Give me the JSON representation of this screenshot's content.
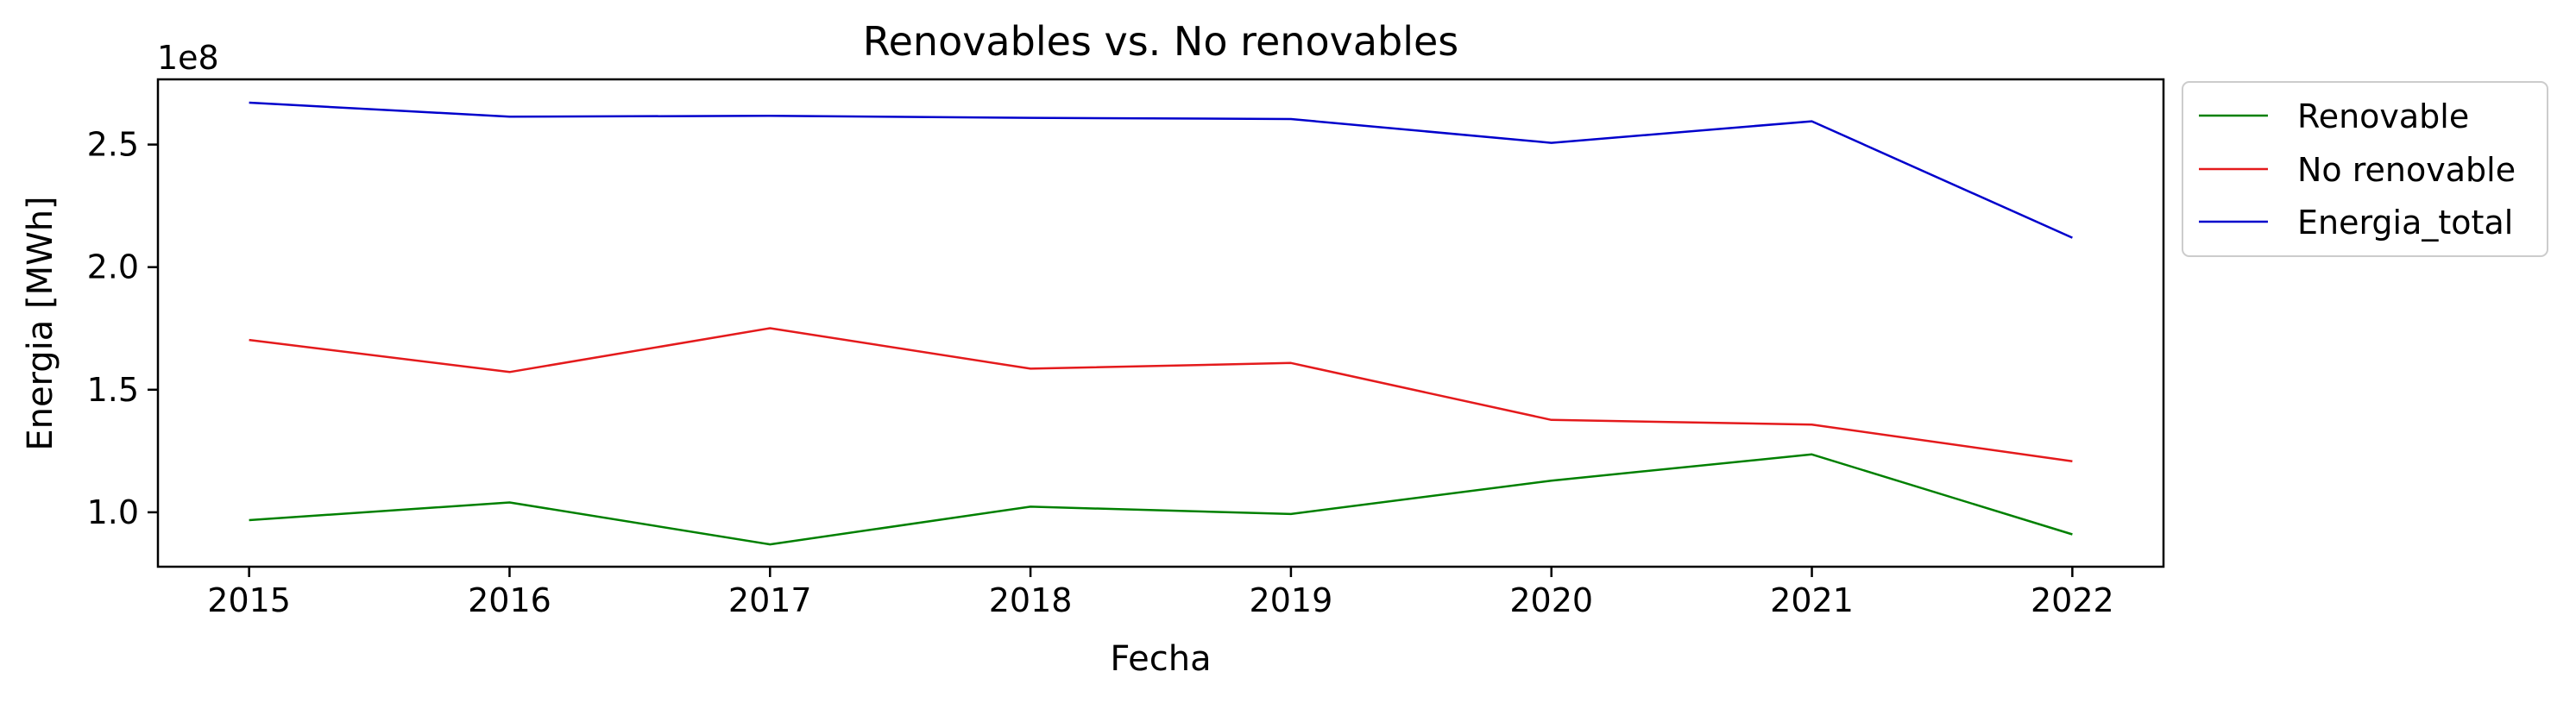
{
  "chart_data": {
    "type": "line",
    "title": "Renovables vs. No renovables",
    "xlabel": "Fecha",
    "ylabel": "Energia [MWh]",
    "y_offset_label": "1e8",
    "x": [
      2015,
      2016,
      2017,
      2018,
      2019,
      2020,
      2021,
      2022
    ],
    "x_tick_labels": [
      "2015",
      "2016",
      "2017",
      "2018",
      "2019",
      "2020",
      "2021",
      "2022"
    ],
    "xlim": [
      2014.65,
      2022.35
    ],
    "ylim": [
      77800000,
      276600000
    ],
    "y_ticks": [
      100000000,
      150000000,
      200000000,
      250000000
    ],
    "y_tick_labels": [
      "1.0",
      "1.5",
      "2.0",
      "2.5"
    ],
    "grid": false,
    "legend_position": "outside upper right",
    "series": [
      {
        "name": "Renovable",
        "color": "#008000",
        "values": [
          96800000,
          104000000,
          86900000,
          102300000,
          99300000,
          112900000,
          123600000,
          91000000
        ]
      },
      {
        "name": "No renovable",
        "color": "#e41a1c",
        "values": [
          170300000,
          157200000,
          175100000,
          158600000,
          160900000,
          137700000,
          135800000,
          120800000
        ]
      },
      {
        "name": "Energia_total",
        "color": "#0000cc",
        "values": [
          267100000,
          261400000,
          261700000,
          260900000,
          260400000,
          250700000,
          259500000,
          212000000
        ]
      }
    ]
  }
}
